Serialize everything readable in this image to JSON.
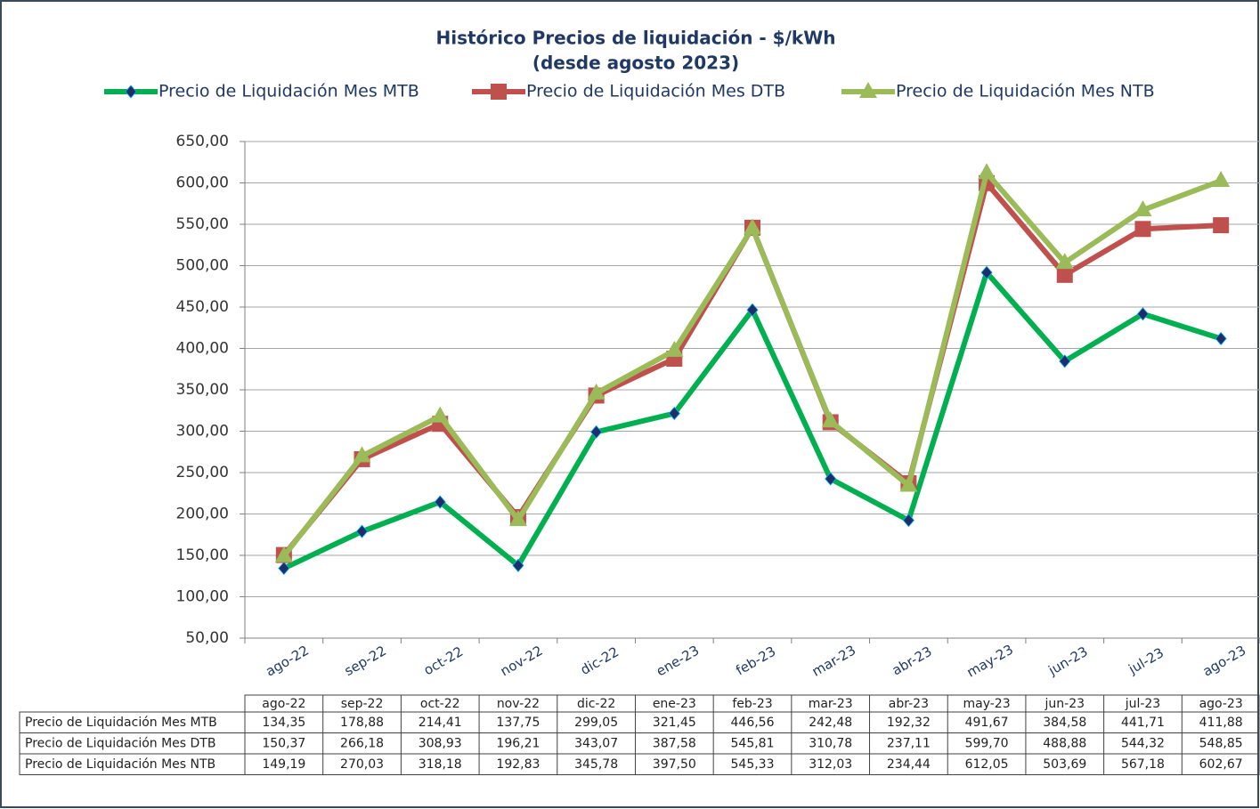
{
  "chart_data": {
    "type": "line",
    "title": "Histórico Precios de liquidación - $/kWh",
    "subtitle": "(desde agosto 2023)",
    "categories": [
      "ago-22",
      "sep-22",
      "oct-22",
      "nov-22",
      "dic-22",
      "ene-23",
      "feb-23",
      "mar-23",
      "abr-23",
      "may-23",
      "jun-23",
      "jul-23",
      "ago-23"
    ],
    "series": [
      {
        "name": "Precio de Liquidación Mes MTB",
        "color": "#00b050",
        "marker": "diamond",
        "marker_color": "#1f2d6b",
        "values": [
          134.35,
          178.88,
          214.41,
          137.75,
          299.05,
          321.45,
          446.56,
          242.48,
          192.32,
          491.67,
          384.58,
          441.71,
          411.88
        ],
        "value_labels": [
          "134,35",
          "178,88",
          "214,41",
          "137,75",
          "299,05",
          "321,45",
          "446,56",
          "242,48",
          "192,32",
          "491,67",
          "384,58",
          "441,71",
          "411,88"
        ]
      },
      {
        "name": "Precio de Liquidación Mes DTB",
        "color": "#c0504d",
        "marker": "square",
        "marker_color": "#c0504d",
        "values": [
          150.37,
          266.18,
          308.93,
          196.21,
          343.07,
          387.58,
          545.81,
          310.78,
          237.11,
          599.7,
          488.88,
          544.32,
          548.85
        ],
        "value_labels": [
          "150,37",
          "266,18",
          "308,93",
          "196,21",
          "343,07",
          "387,58",
          "545,81",
          "310,78",
          "237,11",
          "599,70",
          "488,88",
          "544,32",
          "548,85"
        ]
      },
      {
        "name": "Precio de Liquidación Mes NTB",
        "color": "#9bbb59",
        "marker": "triangle",
        "marker_color": "#9bbb59",
        "values": [
          149.19,
          270.03,
          318.18,
          192.83,
          345.78,
          397.5,
          545.33,
          312.03,
          234.44,
          612.05,
          503.69,
          567.18,
          602.67
        ],
        "value_labels": [
          "149,19",
          "270,03",
          "318,18",
          "192,83",
          "345,78",
          "397,50",
          "545,33",
          "312,03",
          "234,44",
          "612,05",
          "503,69",
          "567,18",
          "602,67"
        ]
      }
    ],
    "ylim": [
      50,
      650
    ],
    "yticks": [
      {
        "value": 50,
        "label": "50,00"
      },
      {
        "value": 100,
        "label": "100,00"
      },
      {
        "value": 150,
        "label": "150,00"
      },
      {
        "value": 200,
        "label": "200,00"
      },
      {
        "value": 250,
        "label": "250,00"
      },
      {
        "value": 300,
        "label": "300,00"
      },
      {
        "value": 350,
        "label": "350,00"
      },
      {
        "value": 400,
        "label": "400,00"
      },
      {
        "value": 450,
        "label": "450,00"
      },
      {
        "value": 500,
        "label": "500,00"
      },
      {
        "value": 550,
        "label": "550,00"
      },
      {
        "value": 600,
        "label": "600,00"
      },
      {
        "value": 650,
        "label": "650,00"
      }
    ],
    "grid": true,
    "legend": "top",
    "data_table": true
  }
}
